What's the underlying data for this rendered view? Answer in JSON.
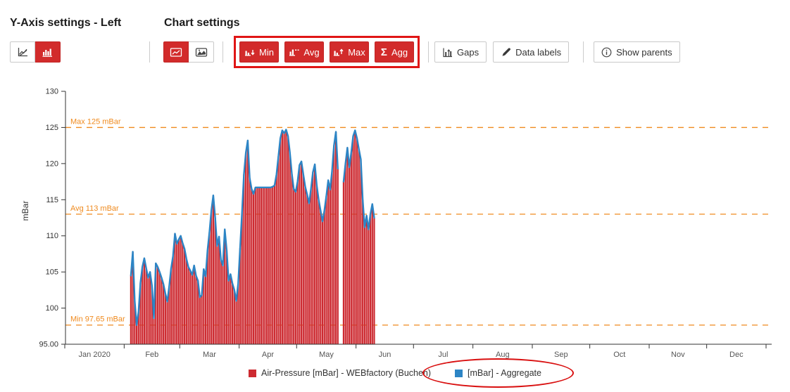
{
  "header": {
    "y_axis_settings_title": "Y-Axis settings - Left",
    "chart_settings_title": "Chart settings"
  },
  "toolbar": {
    "min_label": "Min",
    "avg_label": "Avg",
    "max_label": "Max",
    "agg_label": "Agg",
    "agg_symbol": "Σ",
    "gaps_label": "Gaps",
    "data_labels_label": "Data labels",
    "show_parents_label": "Show parents"
  },
  "colors": {
    "button_red": "#d22b2b",
    "annotation_red": "#e01515",
    "bar_series": "#cd2a31",
    "line_series": "#2d85c5",
    "threshold_orange": "#ef8a1e",
    "axis": "#333333",
    "tick_label": "#555555"
  },
  "legend": {
    "items": [
      {
        "label": "Air-Pressure [mBar] - WEBfactory (Buchen)",
        "color": "#cd2a31",
        "circled": false
      },
      {
        "label": "[mBar] - Aggregate",
        "color": "#2d85c5",
        "circled": true
      }
    ]
  },
  "chart_data": {
    "type": "bar",
    "subtype": "column-with-line-overlay",
    "title": "",
    "xlabel": "",
    "ylabel": "mBar",
    "ylim": [
      95,
      130
    ],
    "grid": false,
    "legend_position": "bottom-center",
    "y_tick_labels": [
      "130",
      "125",
      "120",
      "115",
      "110",
      "105",
      "100",
      "95.00"
    ],
    "y_tick_values": [
      130,
      125,
      120,
      115,
      110,
      105,
      100,
      95
    ],
    "x_tick_labels": [
      "Jan 2020",
      "Feb",
      "Mar",
      "Apr",
      "May",
      "Jun",
      "Jul",
      "Aug",
      "Sep",
      "Oct",
      "Nov",
      "Dec"
    ],
    "x_range_days": 366,
    "month_day_offsets": [
      0,
      31,
      60,
      91,
      121,
      152,
      182,
      213,
      244,
      274,
      305,
      335,
      366
    ],
    "thresholds": [
      {
        "label": "Max 125 mBar",
        "value": 125
      },
      {
        "label": "Avg 113 mBar",
        "value": 113
      },
      {
        "label": "Min 97.65 mBar",
        "value": 97.65
      }
    ],
    "start_date": "2020-02-04",
    "start_day_of_year": 35,
    "interval": "daily",
    "gap_dates": [
      "2020-05-23",
      "2020-05-24"
    ],
    "series": [
      {
        "name": "Air-Pressure [mBar] - WEBfactory (Buchen)",
        "type": "column",
        "color": "#cd2a31",
        "values": [
          104.5,
          107.8,
          101.0,
          97.65,
          99.5,
          103.5,
          105.7,
          106.9,
          105.5,
          104.2,
          105.0,
          103.1,
          98.6,
          106.2,
          105.7,
          105.0,
          104.2,
          103.3,
          102.0,
          100.9,
          103.0,
          105.5,
          107.2,
          110.3,
          108.9,
          109.5,
          110.0,
          109.0,
          108.2,
          106.8,
          105.7,
          105.2,
          104.6,
          105.9,
          104.5,
          103.8,
          101.5,
          101.8,
          105.4,
          104.4,
          108.0,
          110.5,
          113.5,
          115.6,
          112.5,
          108.6,
          109.9,
          106.7,
          105.9,
          110.9,
          108.0,
          103.8,
          104.7,
          103.4,
          102.5,
          101.0,
          103.4,
          108.3,
          113.2,
          118.5,
          121.5,
          123.2,
          118.0,
          116.5,
          115.8,
          116.7,
          116.7,
          116.7,
          116.7,
          116.7,
          116.7,
          116.7,
          116.7,
          116.7,
          116.8,
          117.0,
          118.5,
          121.0,
          123.5,
          124.6,
          124.2,
          124.7,
          123.8,
          121.5,
          118.6,
          116.5,
          116.1,
          117.5,
          119.8,
          120.3,
          118.5,
          116.8,
          115.7,
          114.5,
          116.5,
          118.8,
          119.9,
          117.0,
          115.0,
          113.5,
          112.0,
          113.5,
          115.5,
          117.7,
          116.4,
          119.0,
          122.5,
          124.4,
          119.3,
          null,
          null,
          117.5,
          120.0,
          122.2,
          119.5,
          121.5,
          123.8,
          124.6,
          123.5,
          122.0,
          120.6,
          115.0,
          111.2,
          112.8,
          110.9,
          113.0,
          114.4,
          112.5
        ]
      },
      {
        "name": "[mBar] - Aggregate",
        "type": "line",
        "color": "#2d85c5",
        "values": [
          104.5,
          107.8,
          101.0,
          97.65,
          99.5,
          103.5,
          105.7,
          106.9,
          105.5,
          104.2,
          105.0,
          103.1,
          98.6,
          106.2,
          105.7,
          105.0,
          104.2,
          103.3,
          102.0,
          100.9,
          103.0,
          105.5,
          107.2,
          110.3,
          108.9,
          109.5,
          110.0,
          109.0,
          108.2,
          106.8,
          105.7,
          105.2,
          104.6,
          105.9,
          104.5,
          103.8,
          101.5,
          101.8,
          105.4,
          104.4,
          108.0,
          110.5,
          113.5,
          115.6,
          112.5,
          108.6,
          109.9,
          106.7,
          105.9,
          110.9,
          108.0,
          103.8,
          104.7,
          103.4,
          102.5,
          101.0,
          103.4,
          108.3,
          113.2,
          118.5,
          121.5,
          123.2,
          118.0,
          116.5,
          115.8,
          116.7,
          116.7,
          116.7,
          116.7,
          116.7,
          116.7,
          116.7,
          116.7,
          116.7,
          116.8,
          117.0,
          118.5,
          121.0,
          123.5,
          124.6,
          124.2,
          124.7,
          123.8,
          121.5,
          118.6,
          116.5,
          116.1,
          117.5,
          119.8,
          120.3,
          118.5,
          116.8,
          115.7,
          114.5,
          116.5,
          118.8,
          119.9,
          117.0,
          115.0,
          113.5,
          112.0,
          113.5,
          115.5,
          117.7,
          116.4,
          119.0,
          122.5,
          124.4,
          119.3,
          null,
          null,
          117.5,
          120.0,
          122.2,
          119.5,
          121.5,
          123.8,
          124.6,
          123.5,
          122.0,
          120.6,
          115.0,
          111.2,
          112.8,
          110.9,
          113.0,
          114.4,
          112.5
        ]
      }
    ]
  }
}
